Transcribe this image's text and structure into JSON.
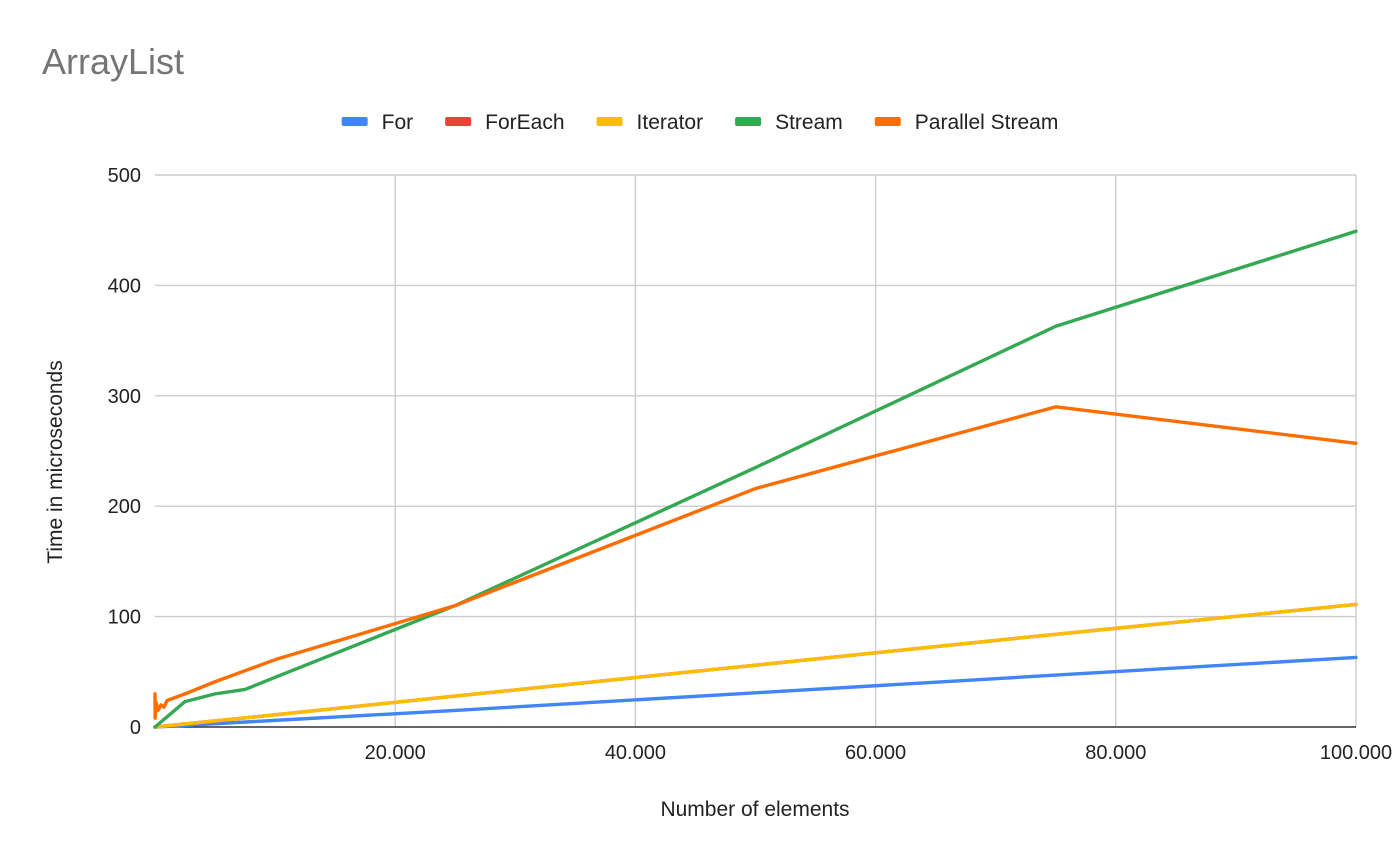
{
  "chart_data": {
    "type": "line",
    "title": "ArrayList",
    "xlabel": "Number of elements",
    "ylabel": "Time in microseconds",
    "xlim": [
      0,
      100000
    ],
    "ylim": [
      0,
      500
    ],
    "x_ticks": [
      {
        "value": 20000,
        "label": "20.000"
      },
      {
        "value": 40000,
        "label": "40.000"
      },
      {
        "value": 60000,
        "label": "60.000"
      },
      {
        "value": 80000,
        "label": "80.000"
      },
      {
        "value": 100000,
        "label": "100.000"
      }
    ],
    "y_ticks": [
      {
        "value": 0,
        "label": "0"
      },
      {
        "value": 100,
        "label": "100"
      },
      {
        "value": 200,
        "label": "200"
      },
      {
        "value": 300,
        "label": "300"
      },
      {
        "value": 400,
        "label": "400"
      },
      {
        "value": 500,
        "label": "500"
      }
    ],
    "grid": true,
    "legend_position": "top",
    "series": [
      {
        "name": "For",
        "color": "#4285f4",
        "points": [
          [
            0,
            0
          ],
          [
            10000,
            6
          ],
          [
            25000,
            15
          ],
          [
            50000,
            31
          ],
          [
            75000,
            47
          ],
          [
            100000,
            63
          ]
        ]
      },
      {
        "name": "ForEach",
        "color": "#ea4335",
        "points": [
          [
            0,
            0
          ],
          [
            10000,
            11
          ],
          [
            25000,
            28
          ],
          [
            50000,
            56
          ],
          [
            75000,
            84
          ],
          [
            100000,
            111
          ]
        ]
      },
      {
        "name": "Iterator",
        "color": "#fbbc04",
        "points": [
          [
            0,
            0
          ],
          [
            10000,
            11
          ],
          [
            25000,
            28
          ],
          [
            50000,
            56
          ],
          [
            75000,
            84
          ],
          [
            100000,
            111
          ]
        ]
      },
      {
        "name": "Stream",
        "color": "#34a853",
        "points": [
          [
            0,
            0
          ],
          [
            2500,
            23
          ],
          [
            5000,
            30
          ],
          [
            7500,
            34
          ],
          [
            10000,
            45
          ],
          [
            25000,
            110
          ],
          [
            50000,
            235
          ],
          [
            75000,
            363
          ],
          [
            100000,
            449
          ]
        ]
      },
      {
        "name": "Parallel Stream",
        "color": "#ff6d01",
        "points": [
          [
            0,
            30
          ],
          [
            10,
            8
          ],
          [
            100,
            22
          ],
          [
            250,
            15
          ],
          [
            500,
            20
          ],
          [
            750,
            18
          ],
          [
            1000,
            24
          ],
          [
            2500,
            30
          ],
          [
            5000,
            41
          ],
          [
            7500,
            51
          ],
          [
            10000,
            61
          ],
          [
            25000,
            110
          ],
          [
            50000,
            216
          ],
          [
            75000,
            290
          ],
          [
            100000,
            257
          ]
        ]
      }
    ]
  }
}
